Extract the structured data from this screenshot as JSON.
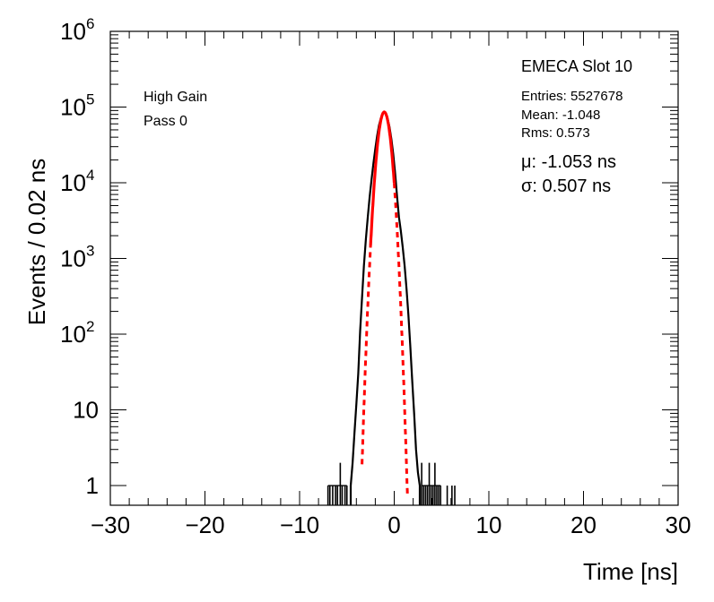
{
  "chart_data": {
    "type": "histogram",
    "xlabel": "Time [ns]",
    "ylabel": "Events / 0.02 ns",
    "xlim": [
      -30,
      30
    ],
    "ylim": [
      0.55,
      1000000
    ],
    "yscale": "log",
    "grid": false,
    "x_ticks": [
      {
        "value": -30,
        "label": "−30"
      },
      {
        "value": -20,
        "label": "−20"
      },
      {
        "value": -10,
        "label": "−10"
      },
      {
        "value": 0,
        "label": "0"
      },
      {
        "value": 10,
        "label": "10"
      },
      {
        "value": 20,
        "label": "20"
      },
      {
        "value": 30,
        "label": "30"
      }
    ],
    "y_ticks": [
      {
        "value": 1,
        "label": "1"
      },
      {
        "value": 10,
        "label": "10"
      },
      {
        "value": 100,
        "mantissa": "10",
        "exponent": "2"
      },
      {
        "value": 1000,
        "mantissa": "10",
        "exponent": "3"
      },
      {
        "value": 10000,
        "mantissa": "10",
        "exponent": "4"
      },
      {
        "value": 100000,
        "mantissa": "10",
        "exponent": "5"
      },
      {
        "value": 1000000,
        "mantissa": "10",
        "exponent": "6"
      }
    ],
    "annotations": {
      "gain": "High Gain",
      "pass": "Pass 0",
      "title": "EMECA Slot 10",
      "entries": "Entries: 5527678",
      "mean": "Mean: -1.048",
      "rms": "Rms: 0.573",
      "mu": "μ: -1.053 ns",
      "sigma": "σ: 0.507 ns"
    },
    "series": [
      {
        "kind": "histogram",
        "color": "#000000",
        "points": [
          [
            -4.6,
            1
          ],
          [
            -4.4,
            2
          ],
          [
            -4.2,
            5
          ],
          [
            -4.0,
            12
          ],
          [
            -3.8,
            30
          ],
          [
            -3.6,
            110
          ],
          [
            -3.4,
            300
          ],
          [
            -3.2,
            800
          ],
          [
            -3.0,
            1800
          ],
          [
            -2.8,
            3500
          ],
          [
            -2.6,
            6500
          ],
          [
            -2.4,
            11000
          ],
          [
            -2.2,
            18000
          ],
          [
            -2.0,
            28000
          ],
          [
            -1.8,
            42000
          ],
          [
            -1.6,
            58000
          ],
          [
            -1.4,
            72000
          ],
          [
            -1.2,
            83000
          ],
          [
            -1.05,
            86000
          ],
          [
            -0.9,
            83000
          ],
          [
            -0.7,
            70000
          ],
          [
            -0.5,
            55000
          ],
          [
            -0.3,
            38000
          ],
          [
            -0.1,
            24000
          ],
          [
            0.1,
            13000
          ],
          [
            0.3,
            6500
          ],
          [
            0.5,
            3500
          ],
          [
            0.7,
            2300
          ],
          [
            0.9,
            1400
          ],
          [
            1.1,
            800
          ],
          [
            1.3,
            400
          ],
          [
            1.5,
            180
          ],
          [
            1.7,
            70
          ],
          [
            1.9,
            25
          ],
          [
            2.1,
            9
          ],
          [
            2.3,
            3
          ],
          [
            2.5,
            1.5
          ],
          [
            2.7,
            1
          ]
        ],
        "isolated_spikes": [
          [
            -7.0,
            1
          ],
          [
            -6.8,
            1
          ],
          [
            -6.5,
            1
          ],
          [
            -6.2,
            1
          ],
          [
            -6.0,
            1
          ],
          [
            -5.7,
            2
          ],
          [
            -5.5,
            1
          ],
          [
            -5.2,
            1
          ],
          [
            -5.0,
            1
          ],
          [
            2.9,
            2
          ],
          [
            3.1,
            1
          ],
          [
            3.3,
            1
          ],
          [
            3.5,
            1
          ],
          [
            3.7,
            2
          ],
          [
            3.9,
            1
          ],
          [
            4.1,
            1
          ],
          [
            4.3,
            2
          ],
          [
            4.5,
            1
          ],
          [
            4.7,
            1
          ],
          [
            4.9,
            1
          ],
          [
            5.6,
            1
          ],
          [
            6.1,
            1
          ],
          [
            6.4,
            1
          ]
        ]
      },
      {
        "kind": "gaussian-fit",
        "color": "#ff0000",
        "amplitude": 86000,
        "mu": -1.053,
        "sigma": 0.507,
        "fit_range": [
          -2.5,
          0.0
        ],
        "draw_range": [
          -3.4,
          1.4
        ]
      }
    ]
  }
}
